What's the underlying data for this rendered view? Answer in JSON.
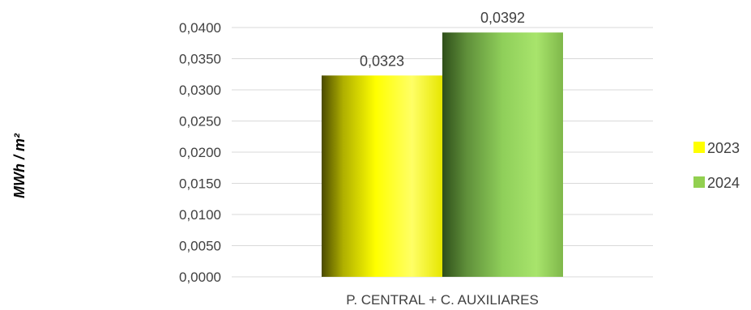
{
  "chart_data": {
    "type": "bar",
    "categories": [
      "P. CENTRAL + C. AUXILIARES"
    ],
    "series": [
      {
        "name": "2023",
        "values": [
          0.0323
        ],
        "data_labels": [
          "0,0323"
        ],
        "color": "#ffff00"
      },
      {
        "name": "2024",
        "values": [
          0.0392
        ],
        "data_labels": [
          "0,0392"
        ],
        "color": "#92d050"
      }
    ],
    "title": "",
    "xlabel": "",
    "ylabel": "MWh / m²",
    "ylim": [
      0,
      0.04
    ],
    "yticks": [
      "0,0000",
      "0,0050",
      "0,0100",
      "0,0150",
      "0,0200",
      "0,0250",
      "0,0300",
      "0,0350",
      "0,0400"
    ],
    "grid": true,
    "legend": "right"
  }
}
